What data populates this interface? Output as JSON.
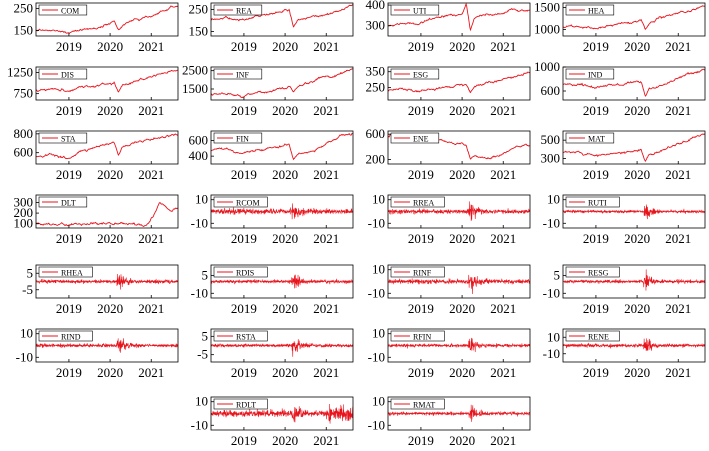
{
  "figure": {
    "line_color": "#e8141c",
    "frame_color": "#000000",
    "background": "#ffffff"
  },
  "chart_data": [
    {
      "type": "line",
      "legend": "COM",
      "kind": "price",
      "ylim": [
        125,
        275
      ],
      "yticks": [
        150,
        250
      ],
      "xticks": [
        "2019",
        "2020",
        "2021"
      ],
      "xlim": [
        2018.2,
        2021.65
      ],
      "series": [
        {
          "name": "COM",
          "x": [
            2018.2,
            2018.6,
            2018.95,
            2019.3,
            2019.7,
            2020.0,
            2020.1,
            2020.2,
            2020.3,
            2020.6,
            2021.0,
            2021.3,
            2021.6
          ],
          "values": [
            150,
            152,
            140,
            155,
            160,
            185,
            192,
            150,
            175,
            200,
            215,
            240,
            262
          ]
        }
      ]
    },
    {
      "type": "line",
      "legend": "REA",
      "kind": "price",
      "ylim": [
        130,
        280
      ],
      "yticks": [
        150,
        250
      ],
      "xticks": [
        "2019",
        "2020",
        "2021"
      ],
      "xlim": [
        2018.2,
        2021.65
      ],
      "series": [
        {
          "name": "REA",
          "x": [
            2018.2,
            2018.6,
            2018.95,
            2019.3,
            2019.7,
            2020.0,
            2020.1,
            2020.2,
            2020.3,
            2020.6,
            2021.0,
            2021.3,
            2021.6
          ],
          "values": [
            205,
            210,
            200,
            220,
            235,
            245,
            255,
            170,
            200,
            215,
            230,
            245,
            270
          ]
        }
      ]
    },
    {
      "type": "line",
      "legend": "UTI",
      "kind": "price",
      "ylim": [
        250,
        410
      ],
      "yticks": [
        300,
        400
      ],
      "xticks": [
        "2019",
        "2020",
        "2021"
      ],
      "xlim": [
        2018.2,
        2021.65
      ],
      "series": [
        {
          "name": "UTI",
          "x": [
            2018.2,
            2018.6,
            2018.95,
            2019.3,
            2019.7,
            2020.0,
            2020.1,
            2020.2,
            2020.3,
            2020.6,
            2021.0,
            2021.3,
            2021.6
          ],
          "values": [
            300,
            315,
            310,
            335,
            350,
            360,
            405,
            275,
            340,
            355,
            360,
            375,
            370
          ]
        }
      ]
    },
    {
      "type": "line",
      "legend": "HEA",
      "kind": "price",
      "ylim": [
        850,
        1600
      ],
      "yticks": [
        1000,
        1500
      ],
      "xticks": [
        "2019",
        "2020",
        "2021"
      ],
      "xlim": [
        2018.2,
        2021.65
      ],
      "series": [
        {
          "name": "HEA",
          "x": [
            2018.2,
            2018.6,
            2018.95,
            2019.3,
            2019.7,
            2020.0,
            2020.1,
            2020.2,
            2020.3,
            2020.6,
            2021.0,
            2021.3,
            2021.6
          ],
          "values": [
            1050,
            1080,
            1000,
            1100,
            1120,
            1200,
            1230,
            1000,
            1150,
            1250,
            1350,
            1420,
            1540
          ]
        }
      ]
    },
    {
      "type": "line",
      "legend": "DIS",
      "kind": "price",
      "ylim": [
        600,
        1380
      ],
      "yticks": [
        750,
        1250
      ],
      "xticks": [
        "2019",
        "2020",
        "2021"
      ],
      "xlim": [
        2018.2,
        2021.65
      ],
      "series": [
        {
          "name": "DIS",
          "x": [
            2018.2,
            2018.6,
            2018.95,
            2019.3,
            2019.7,
            2020.0,
            2020.1,
            2020.2,
            2020.3,
            2020.6,
            2021.0,
            2021.3,
            2021.6
          ],
          "values": [
            850,
            880,
            800,
            900,
            920,
            990,
            1000,
            780,
            950,
            1050,
            1150,
            1230,
            1300
          ]
        }
      ]
    },
    {
      "type": "line",
      "legend": "INF",
      "kind": "price",
      "ylim": [
        900,
        2700
      ],
      "yticks": [
        1500,
        2500
      ],
      "xticks": [
        "2019",
        "2020",
        "2021"
      ],
      "xlim": [
        2018.2,
        2021.65
      ],
      "series": [
        {
          "name": "INF",
          "x": [
            2018.2,
            2018.6,
            2018.95,
            2019.3,
            2019.7,
            2020.0,
            2020.1,
            2020.2,
            2020.3,
            2020.6,
            2021.0,
            2021.3,
            2021.6
          ],
          "values": [
            1200,
            1250,
            1100,
            1300,
            1400,
            1550,
            1650,
            1350,
            1600,
            1900,
            2150,
            2300,
            2550
          ]
        }
      ]
    },
    {
      "type": "line",
      "legend": "ESG",
      "kind": "price",
      "ylim": [
        170,
        380
      ],
      "yticks": [
        250,
        350
      ],
      "xticks": [
        "2019",
        "2020",
        "2021"
      ],
      "xlim": [
        2018.2,
        2021.65
      ],
      "series": [
        {
          "name": "ESG",
          "x": [
            2018.2,
            2018.6,
            2018.95,
            2019.3,
            2019.7,
            2020.0,
            2020.1,
            2020.2,
            2020.3,
            2020.6,
            2021.0,
            2021.3,
            2021.6
          ],
          "values": [
            230,
            240,
            225,
            245,
            255,
            270,
            275,
            215,
            255,
            275,
            300,
            320,
            345
          ]
        }
      ]
    },
    {
      "type": "line",
      "legend": "IND",
      "kind": "price",
      "ylim": [
        450,
        1000
      ],
      "yticks": [
        600,
        1000
      ],
      "xticks": [
        "2019",
        "2020",
        "2021"
      ],
      "xlim": [
        2018.2,
        2021.65
      ],
      "series": [
        {
          "name": "IND",
          "x": [
            2018.2,
            2018.6,
            2018.95,
            2019.3,
            2019.7,
            2020.0,
            2020.1,
            2020.2,
            2020.3,
            2020.6,
            2021.0,
            2021.3,
            2021.6
          ],
          "values": [
            700,
            720,
            640,
            700,
            710,
            750,
            760,
            500,
            640,
            700,
            820,
            900,
            960
          ]
        }
      ]
    },
    {
      "type": "line",
      "legend": "STA",
      "kind": "price",
      "ylim": [
        480,
        830
      ],
      "yticks": [
        600,
        800
      ],
      "xticks": [
        "2019",
        "2020",
        "2021"
      ],
      "xlim": [
        2018.2,
        2021.65
      ],
      "series": [
        {
          "name": "STA",
          "x": [
            2018.2,
            2018.6,
            2018.95,
            2019.3,
            2019.7,
            2020.0,
            2020.1,
            2020.2,
            2020.3,
            2020.6,
            2021.0,
            2021.3,
            2021.6
          ],
          "values": [
            560,
            580,
            540,
            620,
            650,
            700,
            715,
            560,
            660,
            700,
            740,
            770,
            790
          ]
        }
      ]
    },
    {
      "type": "line",
      "legend": "FIN",
      "kind": "price",
      "ylim": [
        300,
        720
      ],
      "yticks": [
        400,
        600
      ],
      "xticks": [
        "2019",
        "2020",
        "2021"
      ],
      "xlim": [
        2018.2,
        2021.65
      ],
      "series": [
        {
          "name": "FIN",
          "x": [
            2018.2,
            2018.6,
            2018.95,
            2019.3,
            2019.7,
            2020.0,
            2020.1,
            2020.2,
            2020.3,
            2020.6,
            2021.0,
            2021.3,
            2021.6
          ],
          "values": [
            480,
            490,
            440,
            490,
            500,
            540,
            545,
            350,
            420,
            450,
            560,
            640,
            690
          ]
        }
      ]
    },
    {
      "type": "line",
      "legend": "ENE",
      "kind": "price",
      "ylim": [
        130,
        650
      ],
      "yticks": [
        200,
        600
      ],
      "xticks": [
        "2019",
        "2020",
        "2021"
      ],
      "xlim": [
        2018.2,
        2021.65
      ],
      "series": [
        {
          "name": "ENE",
          "x": [
            2018.2,
            2018.6,
            2018.95,
            2019.3,
            2019.7,
            2020.0,
            2020.1,
            2020.2,
            2020.3,
            2020.6,
            2021.0,
            2021.3,
            2021.6
          ],
          "values": [
            580,
            600,
            500,
            540,
            470,
            460,
            430,
            200,
            260,
            200,
            300,
            390,
            420
          ]
        }
      ]
    },
    {
      "type": "line",
      "legend": "MAT",
      "kind": "price",
      "ylim": [
        240,
        600
      ],
      "yticks": [
        300,
        500
      ],
      "xticks": [
        "2019",
        "2020",
        "2021"
      ],
      "xlim": [
        2018.2,
        2021.65
      ],
      "series": [
        {
          "name": "MAT",
          "x": [
            2018.2,
            2018.6,
            2018.95,
            2019.3,
            2019.7,
            2020.0,
            2020.1,
            2020.2,
            2020.3,
            2020.6,
            2021.0,
            2021.3,
            2021.6
          ],
          "values": [
            370,
            380,
            330,
            360,
            360,
            390,
            395,
            270,
            340,
            380,
            460,
            510,
            560
          ]
        }
      ]
    },
    {
      "type": "line",
      "legend": "DLT",
      "kind": "price",
      "ylim": [
        60,
        370
      ],
      "yticks": [
        100,
        200,
        300
      ],
      "xticks": [
        "2019",
        "2020",
        "2021"
      ],
      "xlim": [
        2018.2,
        2021.65
      ],
      "series": [
        {
          "name": "DLT",
          "x": [
            2018.2,
            2018.6,
            2018.95,
            2019.3,
            2019.7,
            2020.0,
            2020.3,
            2020.6,
            2020.9,
            2021.05,
            2021.2,
            2021.35,
            2021.5,
            2021.65
          ],
          "values": [
            100,
            95,
            92,
            95,
            97,
            100,
            100,
            102,
            105,
            160,
            310,
            260,
            220,
            250
          ]
        }
      ]
    },
    {
      "type": "line",
      "legend": "RCOM",
      "kind": "return",
      "ylim": [
        -14,
        14
      ],
      "yticks": [
        10,
        -10
      ],
      "amplitude": 2.5,
      "crisis_amplitude": 10,
      "xticks": [
        "2019",
        "2020",
        "2021"
      ],
      "xlim": [
        2018.2,
        2021.65
      ]
    },
    {
      "type": "line",
      "legend": "RREA",
      "kind": "return",
      "ylim": [
        -14,
        14
      ],
      "yticks": [
        10,
        -10
      ],
      "amplitude": 2,
      "crisis_amplitude": 10,
      "xticks": [
        "2019",
        "2020",
        "2021"
      ],
      "xlim": [
        2018.2,
        2021.65
      ]
    },
    {
      "type": "line",
      "legend": "RUTI",
      "kind": "return",
      "ylim": [
        -14,
        14
      ],
      "yticks": [
        10,
        -10
      ],
      "amplitude": 1.2,
      "crisis_amplitude": 10,
      "xticks": [
        "2019",
        "2020",
        "2021"
      ],
      "xlim": [
        2018.2,
        2021.65
      ]
    },
    {
      "type": "line",
      "legend": "RHEA",
      "kind": "return",
      "ylim": [
        -10,
        10
      ],
      "yticks": [
        5,
        -5
      ],
      "amplitude": 1.2,
      "crisis_amplitude": 7,
      "xticks": [
        "2019",
        "2020",
        "2021"
      ],
      "xlim": [
        2018.2,
        2021.65
      ]
    },
    {
      "type": "line",
      "legend": "RDIS",
      "kind": "return",
      "ylim": [
        -14,
        14
      ],
      "yticks": [
        5,
        -10
      ],
      "amplitude": 1.5,
      "crisis_amplitude": 9,
      "xticks": [
        "2019",
        "2020",
        "2021"
      ],
      "xlim": [
        2018.2,
        2021.65
      ]
    },
    {
      "type": "line",
      "legend": "RINF",
      "kind": "return",
      "ylim": [
        -14,
        14
      ],
      "yticks": [
        10,
        -10
      ],
      "amplitude": 2,
      "crisis_amplitude": 10,
      "xticks": [
        "2019",
        "2020",
        "2021"
      ],
      "xlim": [
        2018.2,
        2021.65
      ]
    },
    {
      "type": "line",
      "legend": "RESG",
      "kind": "return",
      "ylim": [
        -14,
        14
      ],
      "yticks": [
        5,
        -10
      ],
      "amplitude": 1.5,
      "crisis_amplitude": 10,
      "xticks": [
        "2019",
        "2020",
        "2021"
      ],
      "xlim": [
        2018.2,
        2021.65
      ]
    },
    {
      "type": "line",
      "legend": "RIND",
      "kind": "return",
      "ylim": [
        -14,
        14
      ],
      "yticks": [
        10,
        -10
      ],
      "amplitude": 1.5,
      "crisis_amplitude": 10,
      "xticks": [
        "2019",
        "2020",
        "2021"
      ],
      "xlim": [
        2018.2,
        2021.65
      ]
    },
    {
      "type": "line",
      "legend": "RSTA",
      "kind": "return",
      "ylim": [
        -9,
        9
      ],
      "yticks": [
        5,
        -5
      ],
      "amplitude": 1,
      "crisis_amplitude": 7,
      "xticks": [
        "2019",
        "2020",
        "2021"
      ],
      "xlim": [
        2018.2,
        2021.65
      ]
    },
    {
      "type": "line",
      "legend": "RFIN",
      "kind": "return",
      "ylim": [
        -14,
        14
      ],
      "yticks": [
        10,
        -10
      ],
      "amplitude": 1.5,
      "crisis_amplitude": 10,
      "xticks": [
        "2019",
        "2020",
        "2021"
      ],
      "xlim": [
        2018.2,
        2021.65
      ]
    },
    {
      "type": "line",
      "legend": "RENE",
      "kind": "return",
      "ylim": [
        -20,
        20
      ],
      "yticks": [
        10,
        -10
      ],
      "amplitude": 2,
      "crisis_amplitude": 15,
      "xticks": [
        "2019",
        "2020",
        "2021"
      ],
      "xlim": [
        2018.2,
        2021.65
      ]
    },
    {
      "type": "line",
      "legend": "RDLT",
      "kind": "return",
      "ylim": [
        -14,
        14
      ],
      "yticks": [
        10,
        -10
      ],
      "amplitude": 3,
      "crisis_amplitude": 10,
      "xticks": [
        "2019",
        "2020",
        "2021"
      ],
      "xlim": [
        2018.2,
        2021.65
      ]
    },
    {
      "type": "line",
      "legend": "RMAT",
      "kind": "return",
      "ylim": [
        -14,
        14
      ],
      "yticks": [
        10,
        -10
      ],
      "amplitude": 1.5,
      "crisis_amplitude": 11,
      "xticks": [
        "2019",
        "2020",
        "2021"
      ],
      "xlim": [
        2018.2,
        2021.65
      ]
    }
  ]
}
